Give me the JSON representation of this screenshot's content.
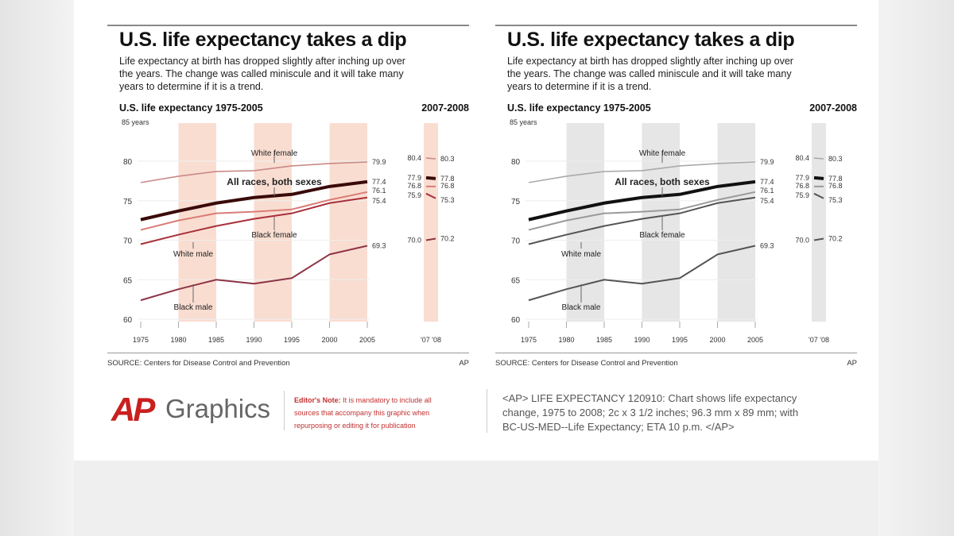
{
  "panels": {
    "title": "U.S. life expectancy takes a dip",
    "subtitle": [
      "Life expectancy at birth has dropped slightly after inching up over",
      "the years. The change was called miniscule and it will take many",
      "years to determine if it is a trend."
    ],
    "chart_heading": "U.S. life expectancy 1975-2005",
    "inset_heading": "2007-2008",
    "source": "SOURCE: Centers for Disease Control and Prevention",
    "credit": "AP"
  },
  "chart_data": {
    "type": "line",
    "title": "U.S. life expectancy 1975-2005",
    "ylabel": "85 years",
    "ylim": [
      60,
      85
    ],
    "yticks": [
      "80",
      "75",
      "70",
      "65",
      "60"
    ],
    "x": [
      1975,
      1980,
      1985,
      1990,
      1995,
      2000,
      2005
    ],
    "xtick_labels": [
      "1975",
      "1980",
      "1985",
      "1990",
      "1995",
      "2000",
      "2005"
    ],
    "shaded_periods": [
      [
        1980,
        1985
      ],
      [
        1990,
        1995
      ],
      [
        2000,
        2005
      ]
    ],
    "series": [
      {
        "name": "White female",
        "values": [
          77.3,
          78.1,
          78.7,
          78.8,
          79.4,
          79.7,
          79.9
        ],
        "end_label": "79.9",
        "inset": [
          80.4,
          80.3
        ],
        "inset_labels": [
          "80.4",
          "80.3"
        ]
      },
      {
        "name": "All races, both sexes",
        "values": [
          72.6,
          73.7,
          74.7,
          75.4,
          75.8,
          76.8,
          77.4
        ],
        "end_label": "77.4",
        "inset": [
          77.9,
          77.8
        ],
        "inset_labels": [
          "77.9",
          "77.8"
        ]
      },
      {
        "name": "Black female",
        "values": [
          71.3,
          72.5,
          73.4,
          73.6,
          73.9,
          75.1,
          76.1
        ],
        "end_label": "76.1",
        "inset": [
          76.8,
          76.8
        ],
        "inset_labels": [
          "76.8",
          "76.8"
        ]
      },
      {
        "name": "White male",
        "values": [
          69.5,
          70.7,
          71.8,
          72.7,
          73.4,
          74.7,
          75.4
        ],
        "end_label": "75.4",
        "inset": [
          75.9,
          75.3
        ],
        "inset_labels": [
          "75.9",
          "75.3"
        ]
      },
      {
        "name": "Black male",
        "values": [
          62.4,
          63.8,
          65.0,
          64.5,
          65.2,
          68.2,
          69.3
        ],
        "end_label": "69.3",
        "inset": [
          70.0,
          70.2
        ],
        "inset_labels": [
          "70.0",
          "70.2"
        ]
      }
    ],
    "inset": {
      "title": "2007-2008",
      "xtick_labels": "'07 '08"
    },
    "color_schemes": {
      "color": {
        "band": "#f9ddd1",
        "series": [
          "#c98a86",
          "#3a0a0a",
          "#d97d76",
          "#a8303a",
          "#8e3446"
        ]
      },
      "gray": {
        "band": "#e6e6e6",
        "series": [
          "#aaaaaa",
          "#111111",
          "#9a9a9a",
          "#555555",
          "#555555"
        ]
      }
    }
  },
  "footer": {
    "logo": "AP",
    "logo_word": "Graphics",
    "editors_note_label": "Editor's Note:",
    "editors_note": [
      "It is mandatory to include all",
      "sources that accompany this graphic when",
      "repurposing or editing it for publication"
    ],
    "caption": [
      "<AP> LIFE EXPECTANCY 120910: Chart shows life expectancy",
      "change, 1975 to 2008; 2c x 3 1/2 inches; 96.3 mm x 89 mm; with",
      "BC-US-MED--Life Expectancy; ETA 10 p.m. </AP>"
    ],
    "caption_bold": "<AP> LIFE EXPECTANCY 120910:"
  }
}
